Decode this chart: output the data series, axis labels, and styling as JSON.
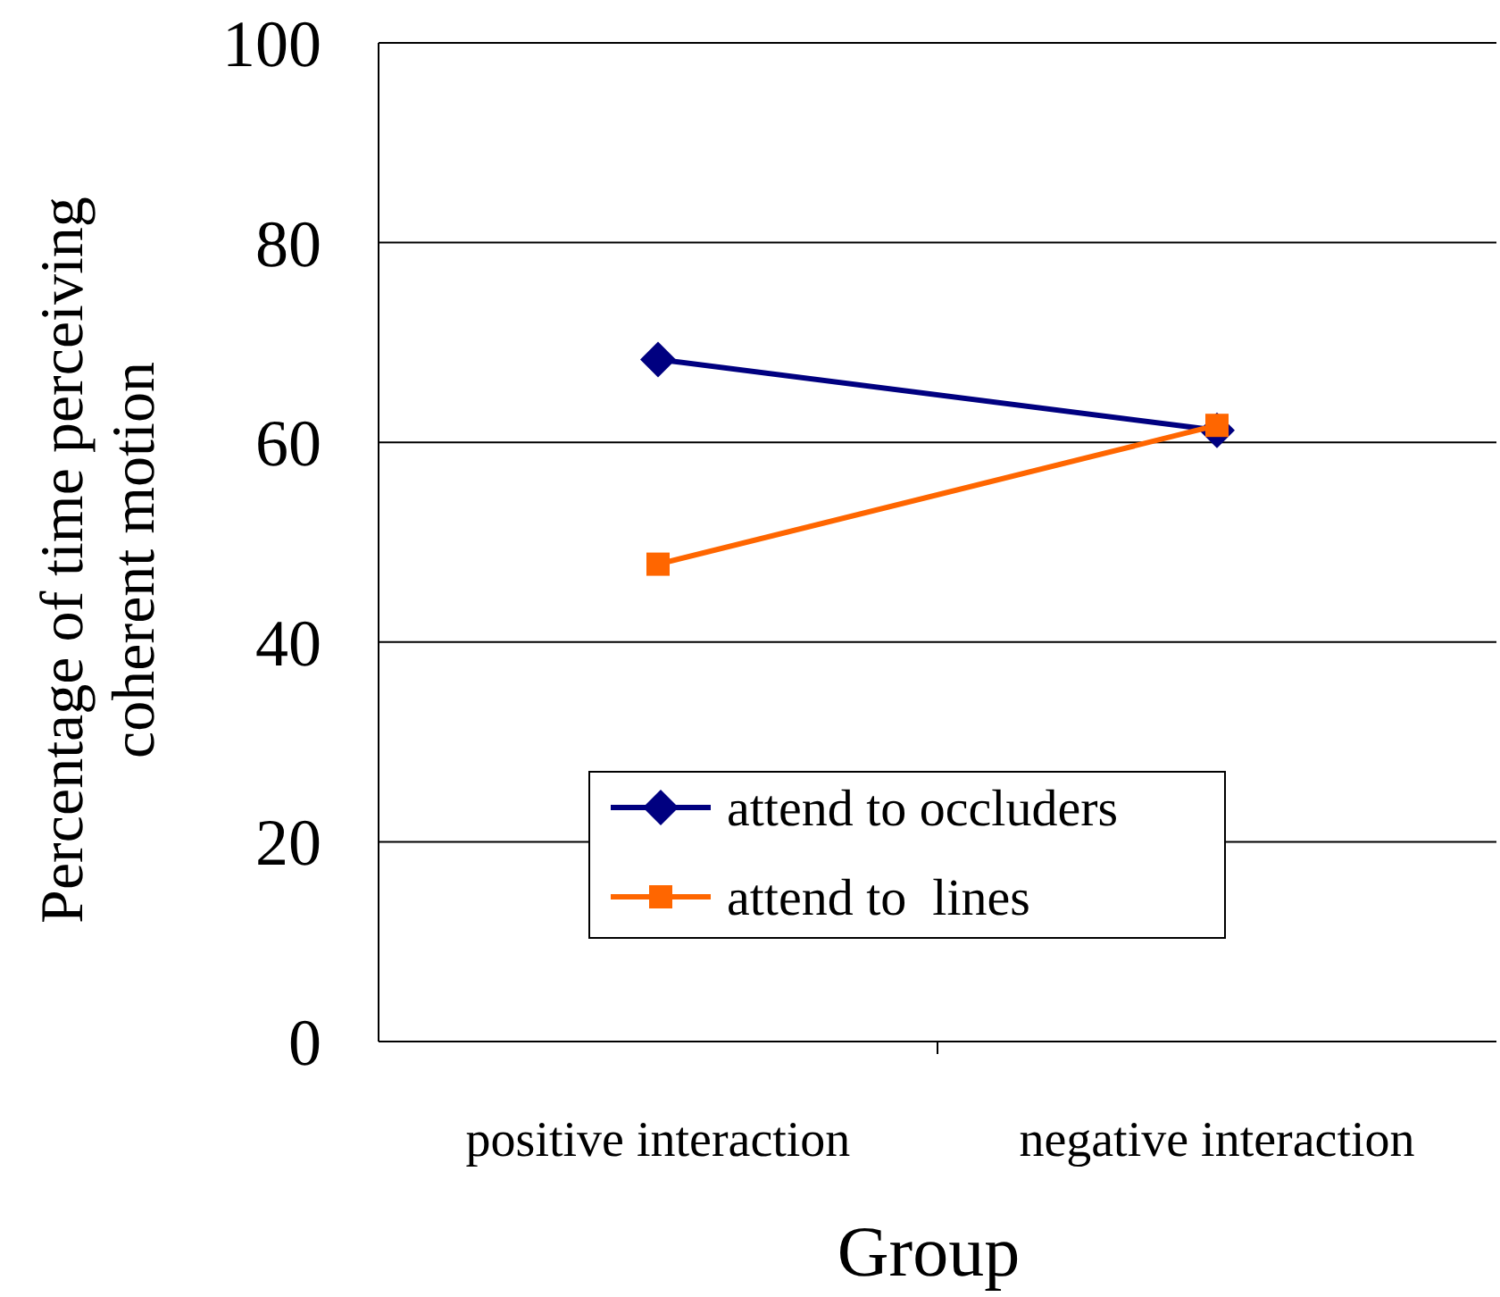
{
  "chart_data": {
    "type": "line",
    "xlabel": "Group",
    "ylabel": "Percentage of time perceiving coherent motion",
    "categories": [
      "positive interaction",
      "negative interaction"
    ],
    "series": [
      {
        "name": "attend to occluders",
        "color": "#000080",
        "values": [
          68.3,
          61.2
        ],
        "marker": "diamond"
      },
      {
        "name": "attend to  lines",
        "color": "#ff6600",
        "values": [
          47.8,
          61.7
        ],
        "marker": "square"
      }
    ],
    "ylim": [
      0,
      100
    ],
    "yticks": [
      0,
      20,
      40,
      60,
      80,
      100
    ],
    "grid": "y",
    "legend": "bottom left",
    "line_style": "solid"
  }
}
